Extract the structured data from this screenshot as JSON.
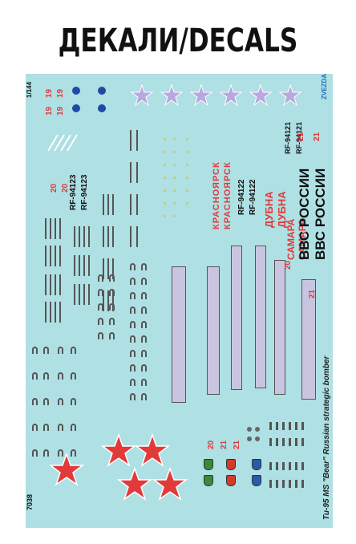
{
  "header": {
    "title": "ДЕКАЛИ/DECALS"
  },
  "sheet": {
    "scale": "1/144",
    "brand": "ZVEZDA",
    "kit_number": "7038",
    "kit_name": "Tu-95 MS \"Bear\" Russian strategic bomber",
    "registrations": [
      "RF-94123",
      "RF-94123",
      "RF-94122",
      "RF-94122",
      "RF-94121",
      "RF-94121"
    ],
    "city_names": [
      "КРАСНОЯРСК",
      "КРАСНОЯРСК",
      "ДУБНА",
      "ДУБНА",
      "САМАРА",
      "САМАРА"
    ],
    "air_force": [
      "ВВС РОССИИ",
      "ВВС РОССИИ"
    ],
    "tail_numbers": [
      "19",
      "19",
      "19",
      "19",
      "20",
      "20",
      "20",
      "20",
      "21",
      "21",
      "21",
      "21",
      "21"
    ],
    "colors": {
      "sheet": "#aee0e4",
      "red": "#e23a3a",
      "blue": "#1f4aa8",
      "lavender": "#c9c5e0"
    }
  }
}
